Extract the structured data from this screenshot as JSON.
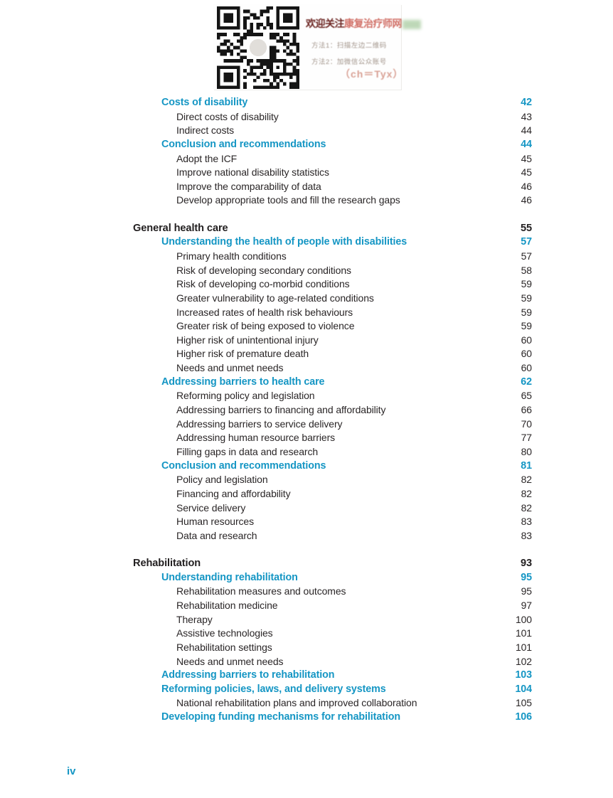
{
  "colors": {
    "accent_teal": "#1596c4",
    "text_black": "#232021",
    "promo_maroon": "#6b2421",
    "promo_red": "#c24034",
    "promo_gray": "#9a8b80",
    "promo_light_red": "#d9a296"
  },
  "promo_overlay": {
    "title_prefix": "欢迎关注",
    "title_highlight": "康复治疗师网",
    "method1": "方法1：扫描左边二维码",
    "method2": "方法2：加微信公众账号",
    "wechat_id": "（ch＝Tyx）",
    "qr_icon": "qr-code"
  },
  "footer": {
    "page_number": "iv"
  },
  "toc": {
    "groups": [
      {
        "items": [
          {
            "level": 2,
            "label": "Costs of disability",
            "page": "42"
          },
          {
            "level": 3,
            "label": "Direct costs of disability",
            "page": "43"
          },
          {
            "level": 3,
            "label": "Indirect costs",
            "page": "44"
          },
          {
            "level": 2,
            "label": "Conclusion and recommendations",
            "page": "44"
          },
          {
            "level": 3,
            "label": "Adopt the ICF",
            "page": "45"
          },
          {
            "level": 3,
            "label": "Improve national disability statistics",
            "page": "45"
          },
          {
            "level": 3,
            "label": "Improve the comparability of data",
            "page": "46"
          },
          {
            "level": 3,
            "label": "Develop appropriate tools and fill the research gaps",
            "page": "46"
          }
        ]
      },
      {
        "items": [
          {
            "level": 1,
            "label": "General health care",
            "page": "55"
          },
          {
            "level": 2,
            "label": "Understanding the health of people with disabilities",
            "page": "57"
          },
          {
            "level": 3,
            "label": "Primary health conditions",
            "page": "57"
          },
          {
            "level": 3,
            "label": "Risk of developing secondary conditions",
            "page": "58"
          },
          {
            "level": 3,
            "label": "Risk of developing co-morbid conditions",
            "page": "59"
          },
          {
            "level": 3,
            "label": "Greater vulnerability to age-related conditions",
            "page": "59"
          },
          {
            "level": 3,
            "label": "Increased rates of health risk behaviours",
            "page": "59"
          },
          {
            "level": 3,
            "label": "Greater risk of being exposed to violence",
            "page": "59"
          },
          {
            "level": 3,
            "label": "Higher risk of unintentional injury",
            "page": "60"
          },
          {
            "level": 3,
            "label": "Higher risk of premature death",
            "page": "60"
          },
          {
            "level": 3,
            "label": "Needs and unmet needs",
            "page": "60"
          },
          {
            "level": 2,
            "label": "Addressing barriers to health care",
            "page": "62"
          },
          {
            "level": 3,
            "label": "Reforming policy and legislation",
            "page": "65"
          },
          {
            "level": 3,
            "label": "Addressing barriers to financing and affordability",
            "page": "66"
          },
          {
            "level": 3,
            "label": "Addressing barriers to service delivery",
            "page": "70"
          },
          {
            "level": 3,
            "label": "Addressing human resource barriers",
            "page": "77"
          },
          {
            "level": 3,
            "label": "Filling gaps in data and research",
            "page": "80"
          },
          {
            "level": 2,
            "label": "Conclusion and recommendations",
            "page": "81"
          },
          {
            "level": 3,
            "label": "Policy and legislation",
            "page": "82"
          },
          {
            "level": 3,
            "label": "Financing and affordability",
            "page": "82"
          },
          {
            "level": 3,
            "label": "Service delivery",
            "page": "82"
          },
          {
            "level": 3,
            "label": "Human resources",
            "page": "83"
          },
          {
            "level": 3,
            "label": "Data and research",
            "page": "83"
          }
        ]
      },
      {
        "items": [
          {
            "level": 1,
            "label": "Rehabilitation",
            "page": "93"
          },
          {
            "level": 2,
            "label": "Understanding rehabilitation",
            "page": "95"
          },
          {
            "level": 3,
            "label": "Rehabilitation measures and outcomes",
            "page": "95"
          },
          {
            "level": 3,
            "label": "Rehabilitation medicine",
            "page": "97"
          },
          {
            "level": 3,
            "label": "Therapy",
            "page": "100"
          },
          {
            "level": 3,
            "label": "Assistive technologies",
            "page": "101"
          },
          {
            "level": 3,
            "label": "Rehabilitation settings",
            "page": "101"
          },
          {
            "level": 3,
            "label": "Needs and unmet needs",
            "page": "102"
          },
          {
            "level": 2,
            "label": "Addressing barriers to rehabilitation",
            "page": "103"
          },
          {
            "level": 2,
            "label": "Reforming policies, laws, and delivery systems",
            "page": "104"
          },
          {
            "level": 3,
            "label": "National rehabilitation plans and improved collaboration",
            "page": "105"
          },
          {
            "level": 2,
            "label": "Developing funding mechanisms for rehabilitation",
            "page": "106"
          }
        ]
      }
    ]
  }
}
